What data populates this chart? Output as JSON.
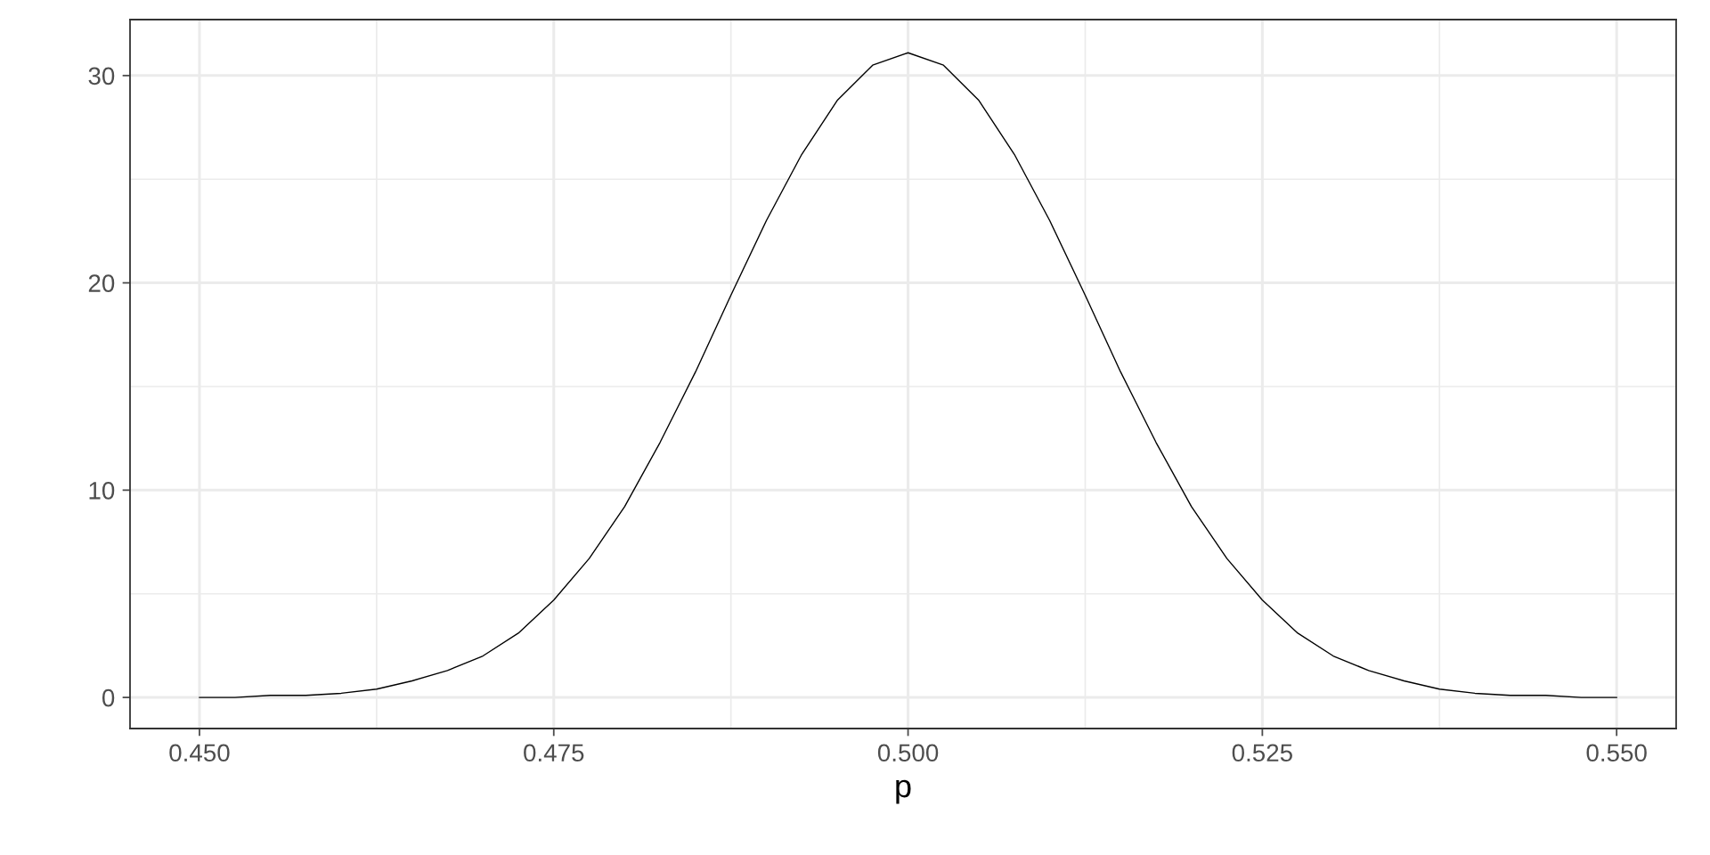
{
  "chart_data": {
    "type": "line",
    "xlabel": "p",
    "x": [
      0.45,
      0.4525,
      0.455,
      0.4575,
      0.46,
      0.4625,
      0.465,
      0.4675,
      0.47,
      0.4725,
      0.475,
      0.4775,
      0.48,
      0.4825,
      0.485,
      0.4875,
      0.49,
      0.4925,
      0.495,
      0.4975,
      0.5,
      0.5025,
      0.505,
      0.5075,
      0.51,
      0.5125,
      0.515,
      0.5175,
      0.52,
      0.5225,
      0.525,
      0.5275,
      0.53,
      0.5325,
      0.535,
      0.5375,
      0.54,
      0.5425,
      0.545,
      0.5475,
      0.55
    ],
    "series": [
      {
        "color": "#000000",
        "values": [
          0.0,
          0.0,
          0.1,
          0.1,
          0.2,
          0.4,
          0.8,
          1.3,
          2.0,
          3.1,
          4.7,
          6.7,
          9.2,
          12.3,
          15.7,
          19.4,
          23.0,
          26.2,
          28.8,
          30.5,
          31.1,
          30.5,
          28.8,
          26.2,
          23.0,
          19.4,
          15.7,
          12.3,
          9.2,
          6.7,
          4.7,
          3.1,
          2.0,
          1.3,
          0.8,
          0.4,
          0.2,
          0.1,
          0.1,
          0.0,
          0.0
        ]
      }
    ],
    "xlim": [
      0.4451,
      0.5542
    ],
    "xticks": [
      {
        "value": 0.45,
        "label": "0.450"
      },
      {
        "value": 0.475,
        "label": "0.475"
      },
      {
        "value": 0.5,
        "label": "0.500"
      },
      {
        "value": 0.525,
        "label": "0.525"
      },
      {
        "value": 0.55,
        "label": "0.550"
      }
    ],
    "ylim": [
      -1.5,
      32.7
    ],
    "yticks": [
      0,
      10,
      20,
      30
    ],
    "grid": true,
    "marker": "none",
    "line_style": "solid"
  }
}
